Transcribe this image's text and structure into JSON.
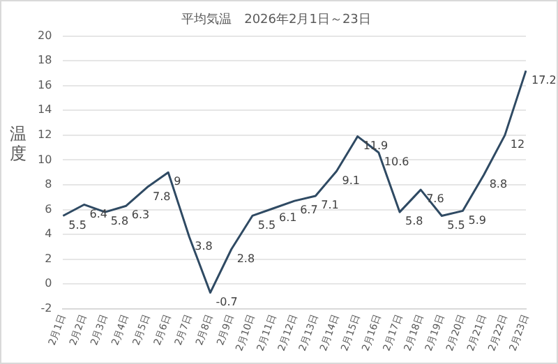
{
  "chart_data": {
    "type": "line",
    "title": "平均気温　2026年2月1日～23日",
    "ylabel": "温度",
    "categories": [
      "2月1日",
      "2月2日",
      "2月3日",
      "2月4日",
      "2月5日",
      "2月6日",
      "2月7日",
      "2月8日",
      "2月9日",
      "2月10日",
      "2月11日",
      "2月12日",
      "2月13日",
      "2月14日",
      "2月15日",
      "2月16日",
      "2月17日",
      "2月18日",
      "2月19日",
      "2月20日",
      "2月21日",
      "2月22日",
      "2月23日"
    ],
    "series": [
      {
        "color": "#2f4a63",
        "values": [
          5.5,
          6.4,
          5.8,
          6.3,
          7.8,
          9,
          3.8,
          -0.7,
          2.8,
          5.5,
          6.1,
          6.7,
          7.1,
          9.1,
          11.9,
          10.6,
          5.8,
          7.6,
          5.5,
          5.9,
          8.8,
          12,
          17.2
        ]
      }
    ],
    "ylim": [
      -2,
      20
    ],
    "yticks": [
      -2,
      0,
      2,
      4,
      6,
      8,
      10,
      12,
      14,
      16,
      18,
      20
    ],
    "grid": "y",
    "legend": false,
    "marker": "none",
    "line_style": "solid",
    "data_labels": true
  }
}
